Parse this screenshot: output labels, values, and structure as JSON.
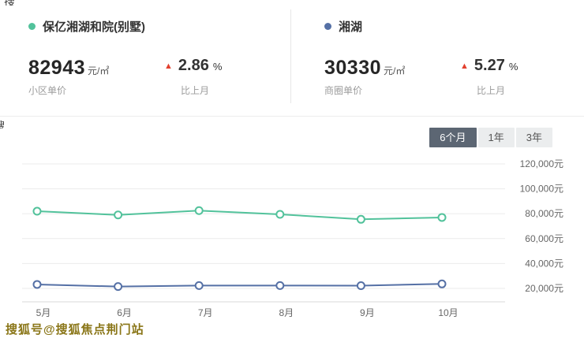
{
  "cards": [
    {
      "name": "保亿湘湖和院(别墅)",
      "dot_color": "#52c29b",
      "price": "82943",
      "unit": "元/㎡",
      "price_label": "小区单价",
      "change": "2.86",
      "percent": "%",
      "change_label": "比上月"
    },
    {
      "name": "湘湖",
      "dot_color": "#5570a5",
      "price": "30330",
      "unit": "元/㎡",
      "price_label": "商圈单价",
      "change": "5.27",
      "percent": "%",
      "change_label": "比上月"
    }
  ],
  "tabs": [
    {
      "label": "6个月",
      "active": true
    },
    {
      "label": "1年",
      "active": false
    },
    {
      "label": "3年",
      "active": false
    }
  ],
  "watermark": {
    "text": "搜狐号@搜狐焦点荆门站"
  },
  "colors": {
    "up_red": "#e2402e",
    "tab_active_bg": "#5c6673",
    "tab_inactive_bg": "#ebedee",
    "watermark": "#8a7618",
    "grid": "#ebebeb",
    "axis": "#d8d8d8",
    "tick_text": "#666666"
  },
  "chart_data": {
    "type": "line",
    "x": [
      "5月",
      "6月",
      "7月",
      "8月",
      "9月",
      "10月"
    ],
    "series": [
      {
        "name": "保亿湘湖和院(别墅)",
        "color": "#52c29b",
        "values": [
          82000,
          79000,
          82500,
          79500,
          75500,
          77000
        ]
      },
      {
        "name": "湘湖",
        "color": "#5570a5",
        "values": [
          23200,
          21500,
          22300,
          22300,
          22200,
          23600
        ]
      }
    ],
    "ylim": [
      20000,
      120000
    ],
    "y_ticks": [
      {
        "value": 120000,
        "label": "120,000元"
      },
      {
        "value": 100000,
        "label": "100,000元"
      },
      {
        "value": 80000,
        "label": "80,000元"
      },
      {
        "value": 60000,
        "label": "60,000元"
      },
      {
        "value": 40000,
        "label": "40,000元"
      },
      {
        "value": 20000,
        "label": "20,000元"
      }
    ],
    "grid": true,
    "legend_position": "none"
  }
}
